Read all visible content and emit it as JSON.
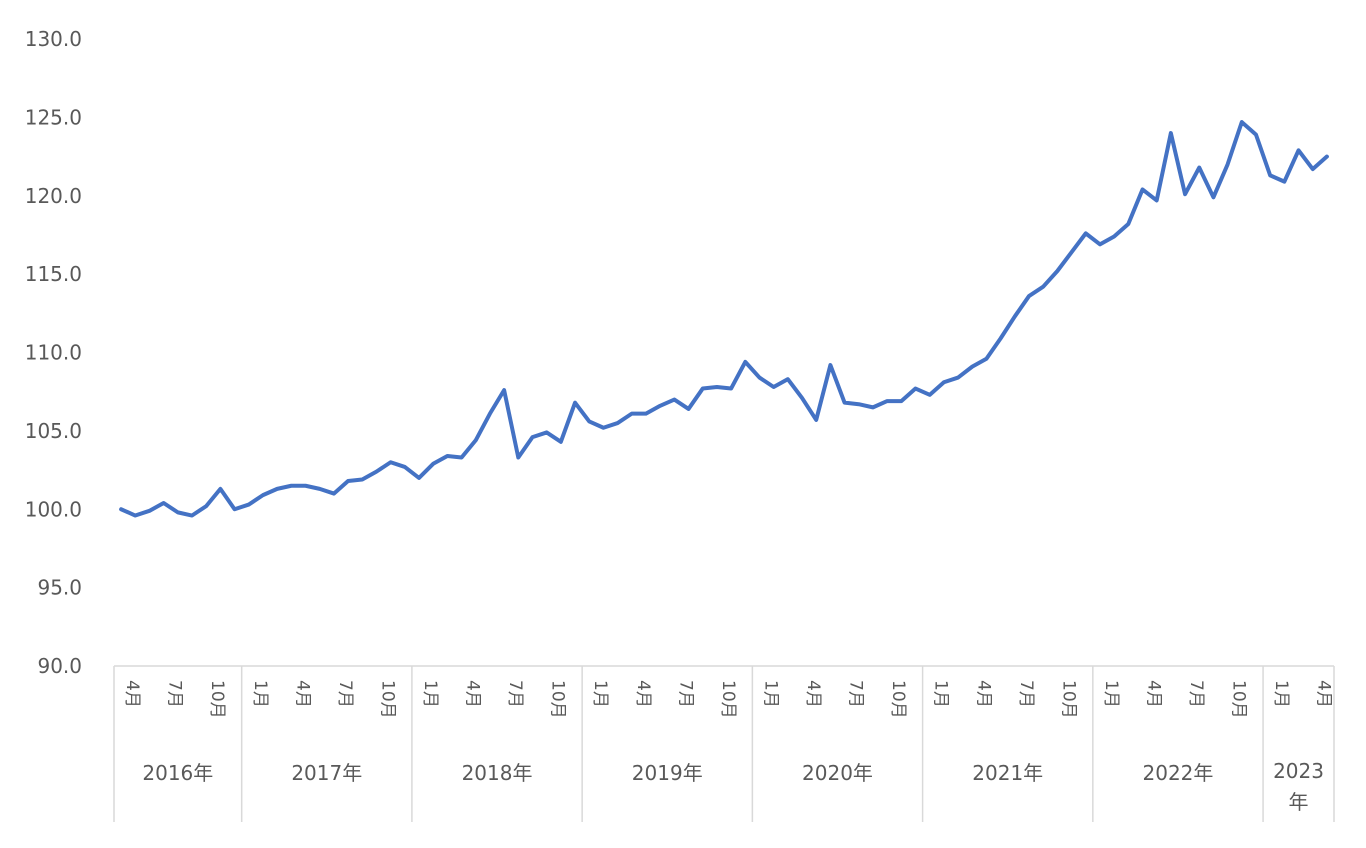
{
  "chart_data": {
    "type": "line",
    "title": "",
    "xlabel": "",
    "ylabel": "",
    "ylim": [
      90,
      130
    ],
    "yticks": [
      "90.0",
      "95.0",
      "100.0",
      "105.0",
      "110.0",
      "115.0",
      "120.0",
      "125.0",
      "130.0"
    ],
    "grid": false,
    "legend": "none",
    "line_color": "#4472C4",
    "axis_color": "#D9D9D9",
    "text_color": "#595959",
    "x_month_labels": [
      "4月",
      "7月",
      "10月",
      "1月",
      "4月",
      "7月",
      "10月",
      "1月",
      "4月",
      "7月",
      "10月",
      "1月",
      "4月",
      "7月",
      "10月",
      "1月",
      "4月",
      "7月",
      "10月",
      "1月",
      "4月",
      "7月",
      "10月",
      "1月",
      "4月",
      "7月",
      "10月",
      "1月",
      "4月"
    ],
    "x_year_labels": [
      {
        "label": "2016年",
        "months": 9
      },
      {
        "label": "2017年",
        "months": 12
      },
      {
        "label": "2018年",
        "months": 12
      },
      {
        "label": "2019年",
        "months": 12
      },
      {
        "label": "2020年",
        "months": 12
      },
      {
        "label": "2021年",
        "months": 12
      },
      {
        "label": "2022年",
        "months": 12
      },
      {
        "label": "2023年",
        "months": 5
      }
    ],
    "series": [
      {
        "values": [
          100.0,
          99.6,
          99.9,
          100.4,
          99.8,
          99.6,
          100.2,
          101.3,
          100.0,
          100.3,
          100.9,
          101.3,
          101.5,
          101.5,
          101.3,
          101.0,
          101.8,
          101.9,
          102.4,
          103.0,
          102.7,
          102.0,
          102.9,
          103.4,
          103.3,
          104.4,
          106.1,
          107.6,
          103.3,
          104.6,
          104.9,
          104.3,
          106.8,
          105.6,
          105.2,
          105.5,
          106.1,
          106.1,
          106.6,
          107.0,
          106.4,
          107.7,
          107.8,
          107.7,
          109.4,
          108.4,
          107.8,
          108.3,
          107.1,
          105.7,
          109.2,
          106.8,
          106.7,
          106.5,
          106.9,
          106.9,
          107.7,
          107.3,
          108.1,
          108.4,
          109.1,
          109.6,
          110.9,
          112.3,
          113.6,
          114.2,
          115.2,
          116.4,
          117.6,
          116.9,
          117.4,
          118.2,
          120.4,
          119.7,
          124.0,
          120.1,
          121.8,
          119.9,
          122.0,
          124.7,
          123.9,
          121.3,
          120.9,
          122.9,
          121.7,
          122.5
        ]
      }
    ]
  }
}
